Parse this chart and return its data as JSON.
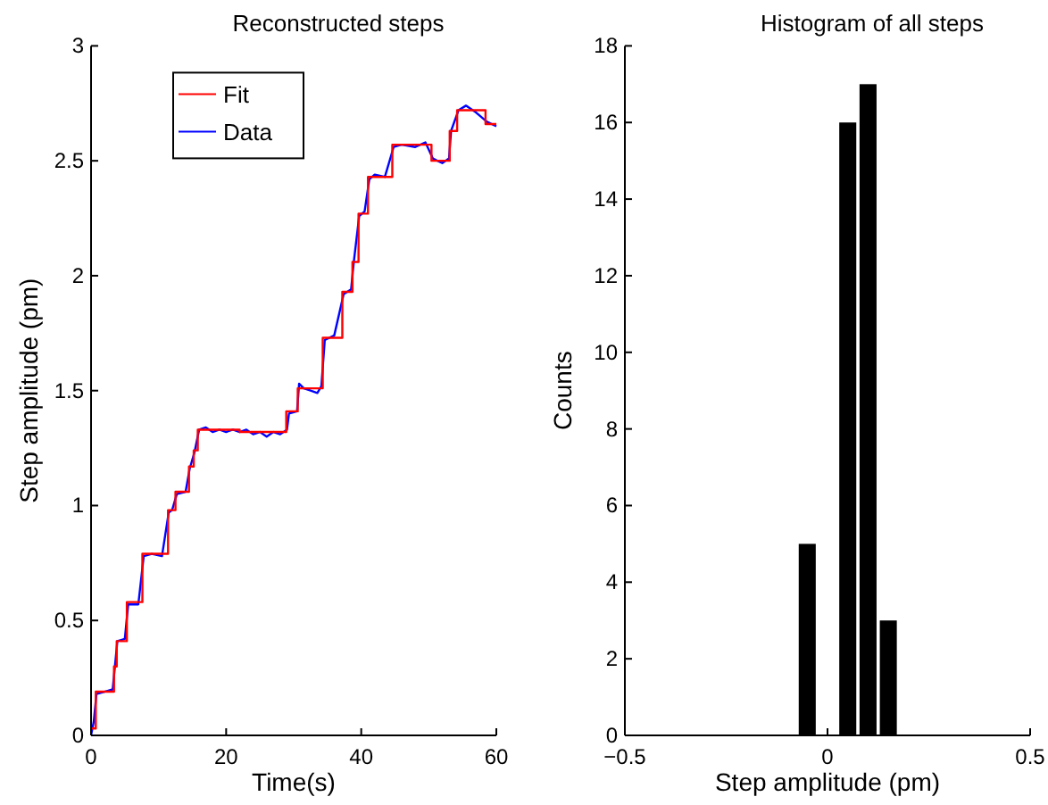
{
  "chart_data": [
    {
      "type": "line",
      "title": "Reconstructed steps",
      "xlabel": "Time(s)",
      "ylabel": "Step amplitude (pm)",
      "xlim": [
        0,
        60
      ],
      "ylim": [
        0,
        3
      ],
      "xticks": [
        0,
        20,
        40,
        60
      ],
      "yticks": [
        0,
        0.5,
        1,
        1.5,
        2,
        2.5,
        3
      ],
      "legend": "top left",
      "grid": false,
      "series": [
        {
          "name": "Fit",
          "color": "#ff0000",
          "x": [
            0,
            0.7,
            0.7,
            3.4,
            3.4,
            3.8,
            3.8,
            5.3,
            5.3,
            7.6,
            7.6,
            11.4,
            11.4,
            12.5,
            12.5,
            14.5,
            14.5,
            15.2,
            15.2,
            15.8,
            15.8,
            22,
            22,
            28.9,
            28.9,
            30.6,
            30.6,
            34.3,
            34.3,
            37.2,
            37.2,
            38.7,
            38.7,
            39.6,
            39.6,
            41,
            41,
            44.6,
            44.6,
            50.4,
            50.4,
            53.1,
            53.1,
            54.2,
            54.2,
            58.4,
            58.4,
            60
          ],
          "values": [
            0.03,
            0.03,
            0.19,
            0.19,
            0.3,
            0.3,
            0.41,
            0.41,
            0.58,
            0.58,
            0.79,
            0.79,
            0.98,
            0.98,
            1.06,
            1.06,
            1.17,
            1.17,
            1.24,
            1.24,
            1.33,
            1.33,
            1.32,
            1.32,
            1.41,
            1.41,
            1.51,
            1.51,
            1.73,
            1.73,
            1.93,
            1.93,
            2.06,
            2.06,
            2.27,
            2.27,
            2.43,
            2.43,
            2.57,
            2.57,
            2.5,
            2.5,
            2.63,
            2.63,
            2.72,
            2.72,
            2.66,
            2.66
          ]
        },
        {
          "name": "Data",
          "color": "#0000ff",
          "x": [
            0,
            0.4,
            0.8,
            2,
            3.2,
            3.5,
            3.9,
            5,
            5.5,
            7,
            7.8,
            9,
            10.5,
            11.5,
            12,
            12.7,
            14,
            14.6,
            15.3,
            16,
            17,
            18,
            19,
            20,
            21,
            22,
            23,
            24,
            25,
            26,
            27,
            28,
            29,
            29.3,
            30.5,
            30.8,
            31.5,
            32.5,
            33.5,
            34.1,
            34.6,
            36,
            37.4,
            38.5,
            38.9,
            39.7,
            40.5,
            41.2,
            42,
            43.5,
            44.8,
            46,
            48,
            49.5,
            50.6,
            52,
            53,
            53.3,
            54.4,
            55.5,
            57,
            58.6,
            60
          ],
          "values": [
            0.0,
            0.06,
            0.18,
            0.19,
            0.2,
            0.29,
            0.41,
            0.42,
            0.57,
            0.57,
            0.78,
            0.79,
            0.78,
            0.97,
            0.98,
            1.05,
            1.06,
            1.16,
            1.23,
            1.33,
            1.34,
            1.32,
            1.33,
            1.32,
            1.33,
            1.32,
            1.33,
            1.31,
            1.32,
            1.3,
            1.32,
            1.31,
            1.33,
            1.4,
            1.41,
            1.53,
            1.51,
            1.5,
            1.49,
            1.52,
            1.72,
            1.74,
            1.92,
            1.94,
            2.06,
            2.26,
            2.28,
            2.42,
            2.44,
            2.43,
            2.56,
            2.57,
            2.56,
            2.58,
            2.51,
            2.49,
            2.51,
            2.63,
            2.72,
            2.74,
            2.71,
            2.67,
            2.65
          ]
        }
      ]
    },
    {
      "type": "histogram",
      "title": "Histogram of all steps",
      "xlabel": "Step amplitude (pm)",
      "ylabel": "Counts",
      "xlim": [
        -0.5,
        0.5
      ],
      "ylim": [
        0,
        18
      ],
      "xticks": [
        {
          "value": -0.5,
          "label": "−0.5"
        },
        0,
        0.5
      ],
      "yticks": [
        0,
        2,
        4,
        6,
        8,
        10,
        12,
        14,
        16,
        18
      ],
      "grid": false,
      "color": "#000000",
      "bins": [
        -0.075,
        -0.025,
        0.025,
        0.075,
        0.125,
        0.175
      ],
      "values": [
        5,
        0,
        16,
        17,
        3
      ]
    }
  ]
}
